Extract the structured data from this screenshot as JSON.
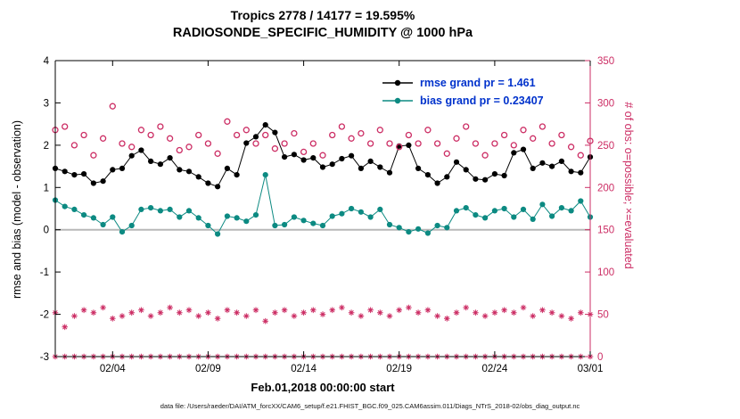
{
  "footer": "data file: /Users/raeder/DAI/ATM_forcXX/CAM6_setup/f.e21.FHIST_BGC.f09_025.CAM6assim.011/Diags_NTrS_2018-02/obs_diag_output.nc",
  "colors": {
    "axis": "#000000",
    "right_axis": "#cc2d64",
    "rmse": "#000000",
    "bias": "#0c8a82",
    "obs_counts": "#cc2d64",
    "zero_line": "#b8b8b8",
    "legend_text": "#0032cc",
    "background": "#ffffff"
  },
  "chart_data": {
    "type": "line",
    "title": "Tropics 2778 / 14177 = 19.595%",
    "subtitle": "RADIOSONDE_SPECIFIC_HUMIDITY @ 1000 hPa",
    "xlabel": "Feb.01,2018 00:00:00 start",
    "ylabel_left": "rmse and bias (model - observation)",
    "ylabel_right": "# of obs: o=possible; ×=evaluated",
    "x_tick_labels": [
      "02/04",
      "02/09",
      "02/14",
      "02/19",
      "02/24",
      "03/01"
    ],
    "x_tick_days": [
      3,
      8,
      13,
      18,
      23,
      28
    ],
    "x_range_days": [
      0,
      28
    ],
    "ylim_left": [
      -3,
      4
    ],
    "ylim_right": [
      0,
      350
    ],
    "yticks_left": [
      -3,
      -2,
      -1,
      0,
      1,
      2,
      3,
      4
    ],
    "yticks_right": [
      0,
      50,
      100,
      150,
      200,
      250,
      300,
      350
    ],
    "zero_line_left": 0,
    "grid": "off",
    "legend_position": "top-right-inside",
    "legend": [
      {
        "series": "rmse",
        "label": "rmse grand pr = 1.461"
      },
      {
        "series": "bias",
        "label": "bias grand pr = 0.23407"
      }
    ],
    "x_days": [
      0,
      0.5,
      1,
      1.5,
      2,
      2.5,
      3,
      3.5,
      4,
      4.5,
      5,
      5.5,
      6,
      6.5,
      7,
      7.5,
      8,
      8.5,
      9,
      9.5,
      10,
      10.5,
      11,
      11.5,
      12,
      12.5,
      13,
      13.5,
      14,
      14.5,
      15,
      15.5,
      16,
      16.5,
      17,
      17.5,
      18,
      18.5,
      19,
      19.5,
      20,
      20.5,
      21,
      21.5,
      22,
      22.5,
      23,
      23.5,
      24,
      24.5,
      25,
      25.5,
      26,
      26.5,
      27,
      27.5,
      28
    ],
    "series": [
      {
        "name": "rmse",
        "axis": "left",
        "marker": "filled-circle",
        "line": true,
        "color": "#000000",
        "grand_value": 1.461,
        "values": [
          1.45,
          1.38,
          1.3,
          1.32,
          1.1,
          1.15,
          1.42,
          1.45,
          1.75,
          1.88,
          1.62,
          1.55,
          1.7,
          1.42,
          1.38,
          1.25,
          1.1,
          1.02,
          1.45,
          1.3,
          2.05,
          2.2,
          2.48,
          2.3,
          1.72,
          1.78,
          1.65,
          1.7,
          1.48,
          1.55,
          1.68,
          1.75,
          1.45,
          1.62,
          1.48,
          1.35,
          1.98,
          2.0,
          1.45,
          1.3,
          1.1,
          1.25,
          1.6,
          1.42,
          1.2,
          1.18,
          1.32,
          1.28,
          1.82,
          1.9,
          1.45,
          1.58,
          1.5,
          1.62,
          1.38,
          1.35,
          1.72
        ]
      },
      {
        "name": "bias",
        "axis": "left",
        "marker": "filled-circle",
        "line": true,
        "color": "#0c8a82",
        "grand_value": 0.23407,
        "values": [
          0.7,
          0.55,
          0.48,
          0.35,
          0.28,
          0.12,
          0.3,
          -0.05,
          0.1,
          0.48,
          0.52,
          0.45,
          0.48,
          0.3,
          0.45,
          0.28,
          0.1,
          -0.1,
          0.32,
          0.28,
          0.2,
          0.35,
          1.3,
          0.1,
          0.12,
          0.3,
          0.22,
          0.15,
          0.1,
          0.32,
          0.38,
          0.5,
          0.42,
          0.3,
          0.48,
          0.12,
          0.05,
          -0.05,
          0.02,
          -0.08,
          0.1,
          0.05,
          0.45,
          0.52,
          0.35,
          0.28,
          0.45,
          0.5,
          0.3,
          0.48,
          0.25,
          0.6,
          0.32,
          0.52,
          0.45,
          0.68,
          0.3
        ]
      },
      {
        "name": "possible_obs",
        "axis": "right",
        "marker": "open-circle",
        "line": false,
        "color": "#cc2d64",
        "values": [
          268,
          272,
          250,
          262,
          238,
          258,
          296,
          252,
          248,
          268,
          262,
          272,
          258,
          244,
          248,
          262,
          252,
          240,
          278,
          262,
          268,
          252,
          262,
          246,
          252,
          264,
          242,
          252,
          238,
          262,
          272,
          258,
          264,
          252,
          268,
          252,
          248,
          262,
          252,
          268,
          252,
          240,
          258,
          272,
          252,
          238,
          252,
          262,
          250,
          268,
          258,
          272,
          252,
          262,
          248,
          238,
          255
        ]
      },
      {
        "name": "evaluated_obs",
        "axis": "right",
        "marker": "asterisk",
        "line": false,
        "color": "#cc2d64",
        "values": [
          52,
          35,
          48,
          55,
          52,
          58,
          45,
          48,
          52,
          55,
          48,
          52,
          58,
          52,
          55,
          48,
          52,
          45,
          55,
          52,
          48,
          55,
          42,
          52,
          55,
          48,
          52,
          55,
          50,
          55,
          58,
          52,
          48,
          55,
          52,
          48,
          55,
          58,
          52,
          55,
          48,
          45,
          52,
          58,
          52,
          48,
          52,
          55,
          52,
          58,
          48,
          55,
          52,
          48,
          45,
          52,
          50
        ]
      },
      {
        "name": "evaluated_obs_zero_row",
        "axis": "right",
        "marker": "asterisk",
        "line": false,
        "color": "#cc2d64",
        "values": [
          0,
          0,
          0,
          0,
          0,
          0,
          0,
          0,
          0,
          0,
          0,
          0,
          0,
          0,
          0,
          0,
          0,
          0,
          0,
          0,
          0,
          0,
          0,
          0,
          0,
          0,
          0,
          0,
          0,
          0,
          0,
          0,
          0,
          0,
          0,
          0,
          0,
          0,
          0,
          0,
          0,
          0,
          0,
          0,
          0,
          0,
          0,
          0,
          0,
          0,
          0,
          0,
          0,
          0,
          0,
          0,
          0
        ]
      }
    ]
  }
}
